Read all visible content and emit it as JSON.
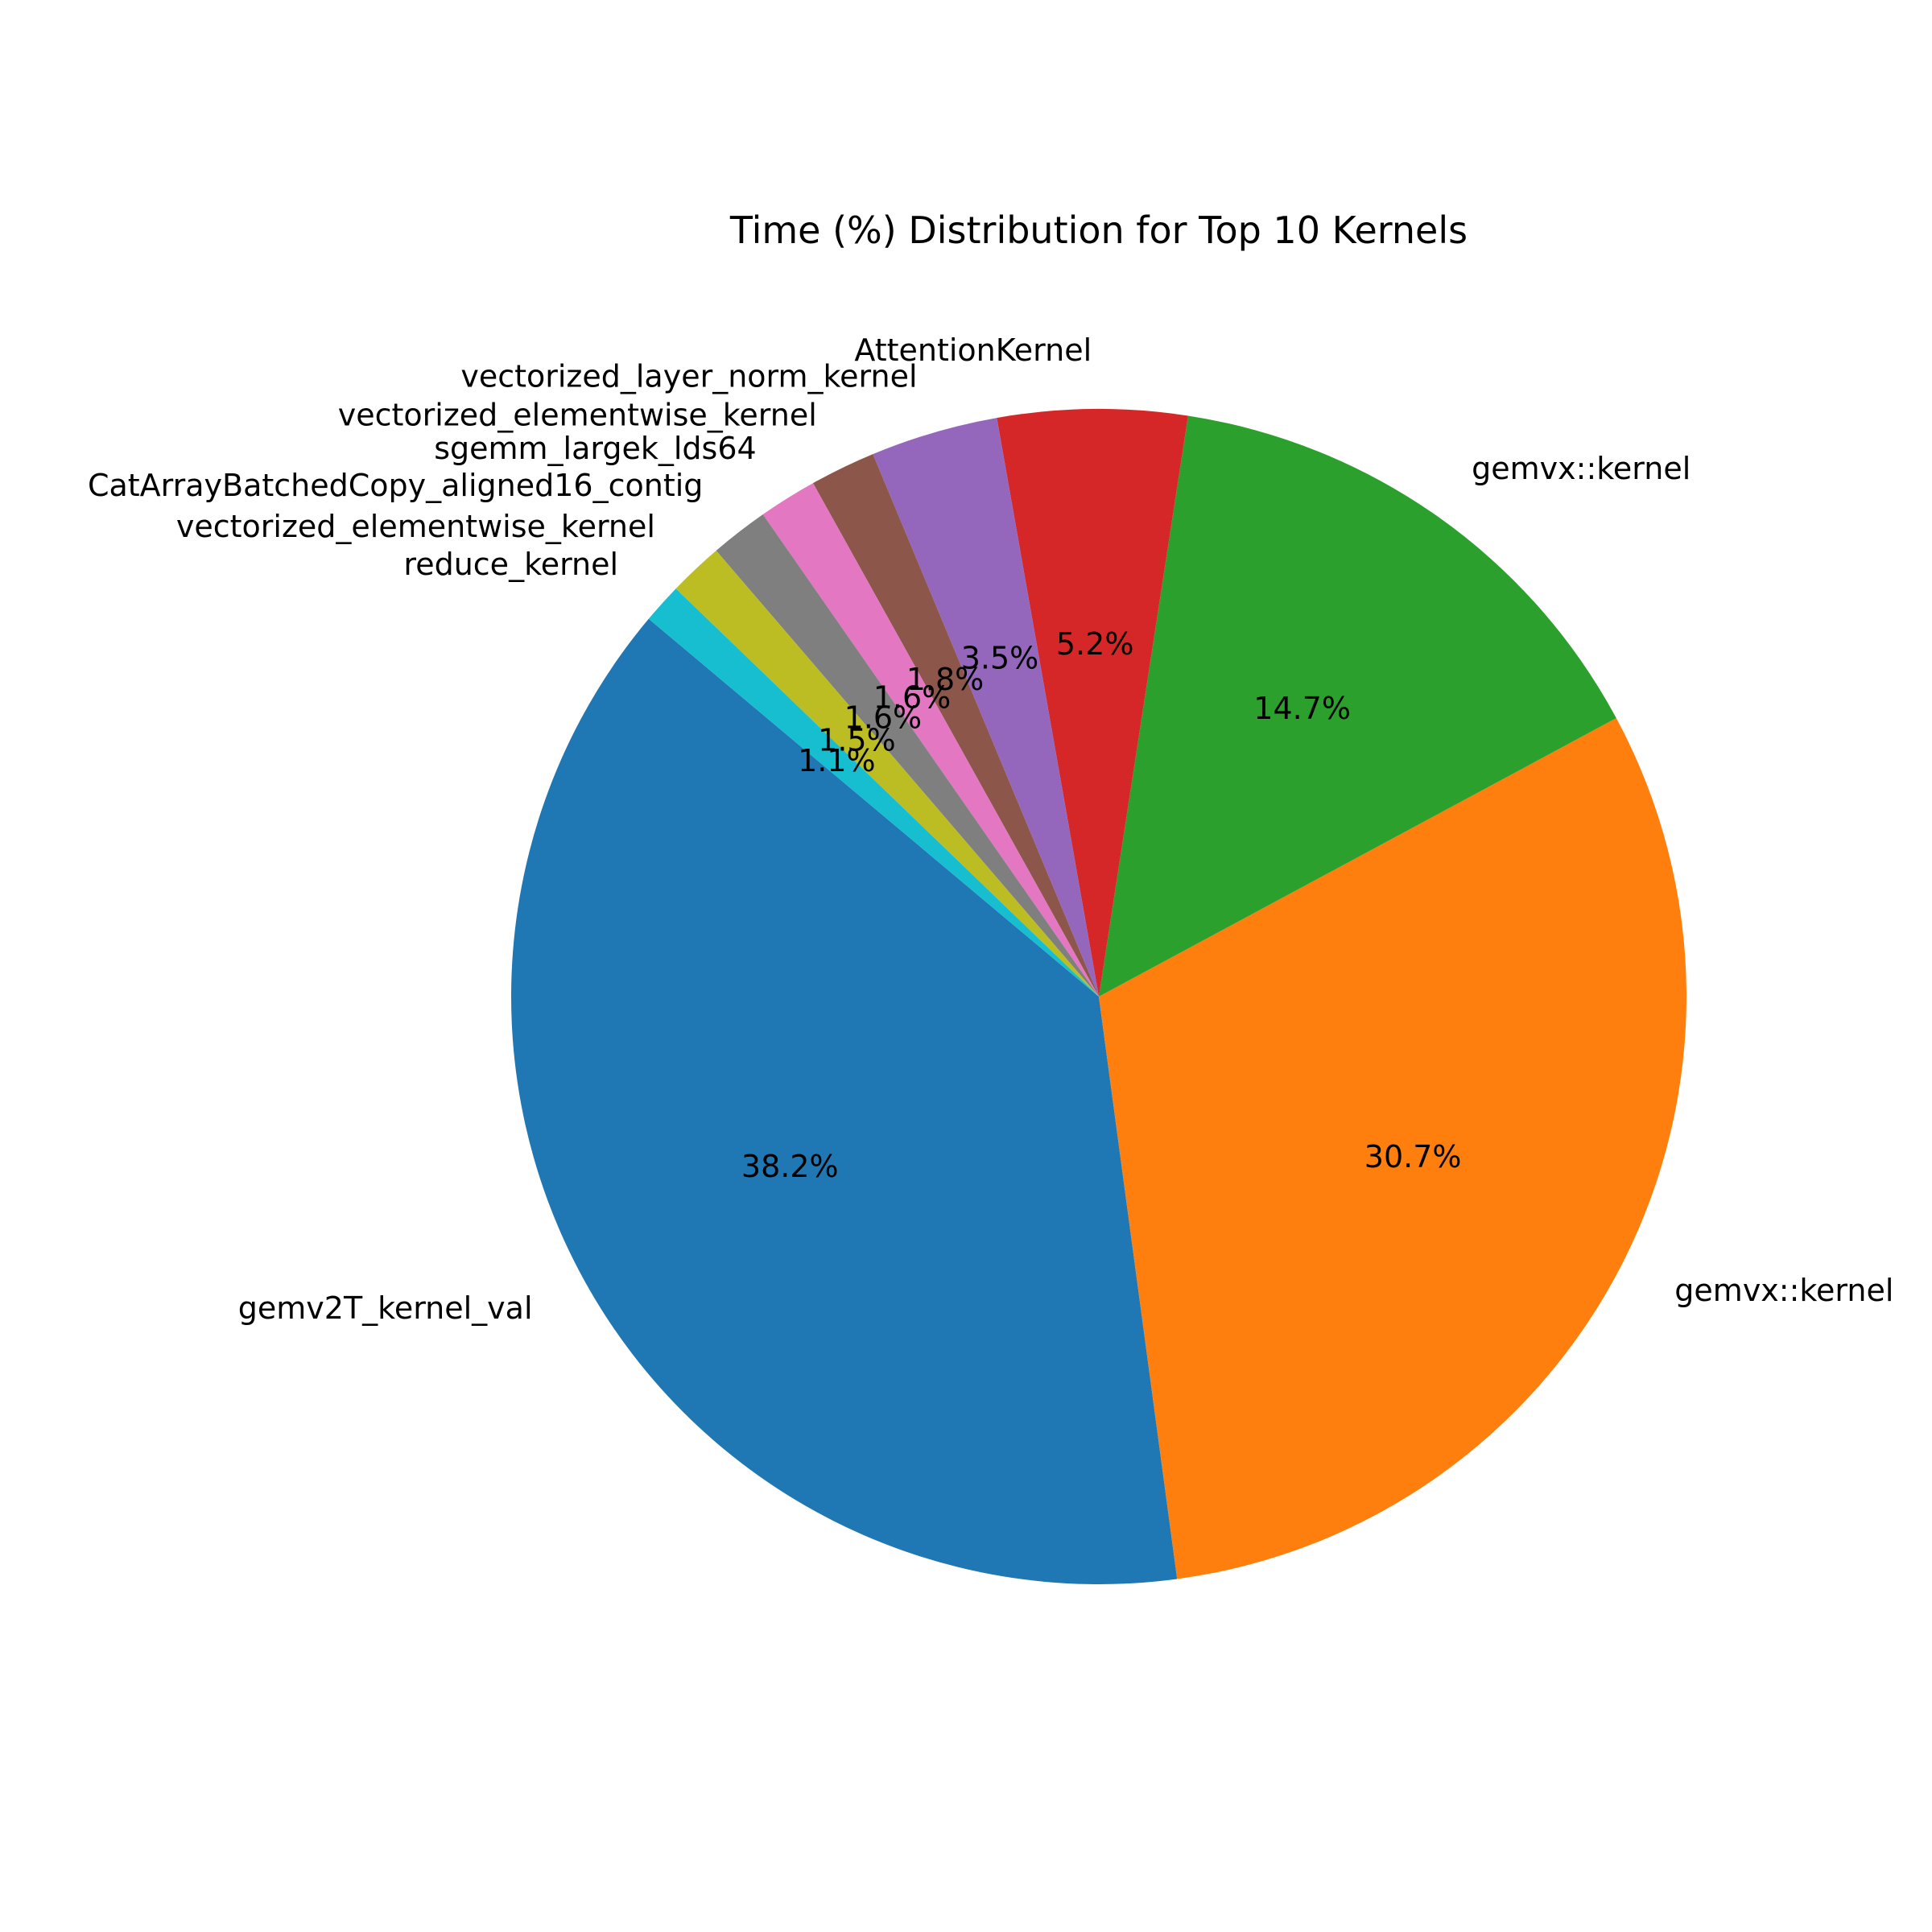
{
  "chart_data": {
    "type": "pie",
    "title": "Time (%) Distribution for Top 10 Kernels",
    "labels": [
      "gemv2T_kernel_val",
      "gemvx::kernel",
      "gemvx::kernel",
      "AttentionKernel",
      "vectorized_layer_norm_kernel",
      "vectorized_elementwise_kernel",
      "sgemm_largek_lds64",
      "CatArrayBatchedCopy_aligned16_contig",
      "vectorized_elementwise_kernel",
      "reduce_kernel"
    ],
    "values": [
      38.2,
      30.7,
      14.7,
      5.2,
      3.5,
      1.8,
      1.6,
      1.6,
      1.5,
      1.1
    ],
    "value_labels": [
      "38.2%",
      "30.7%",
      "14.7%",
      "5.2%",
      "3.5%",
      "1.8%",
      "1.6%",
      "1.6%",
      "1.5%",
      "1.1%"
    ],
    "colors": [
      "#1f77b4",
      "#ff7f0e",
      "#2ca02c",
      "#d62728",
      "#9467bd",
      "#8c564b",
      "#e377c2",
      "#7f7f7f",
      "#bcbd22",
      "#17becf"
    ],
    "start_angle_deg": 140,
    "direction": "counterclockwise",
    "legend": "none"
  }
}
